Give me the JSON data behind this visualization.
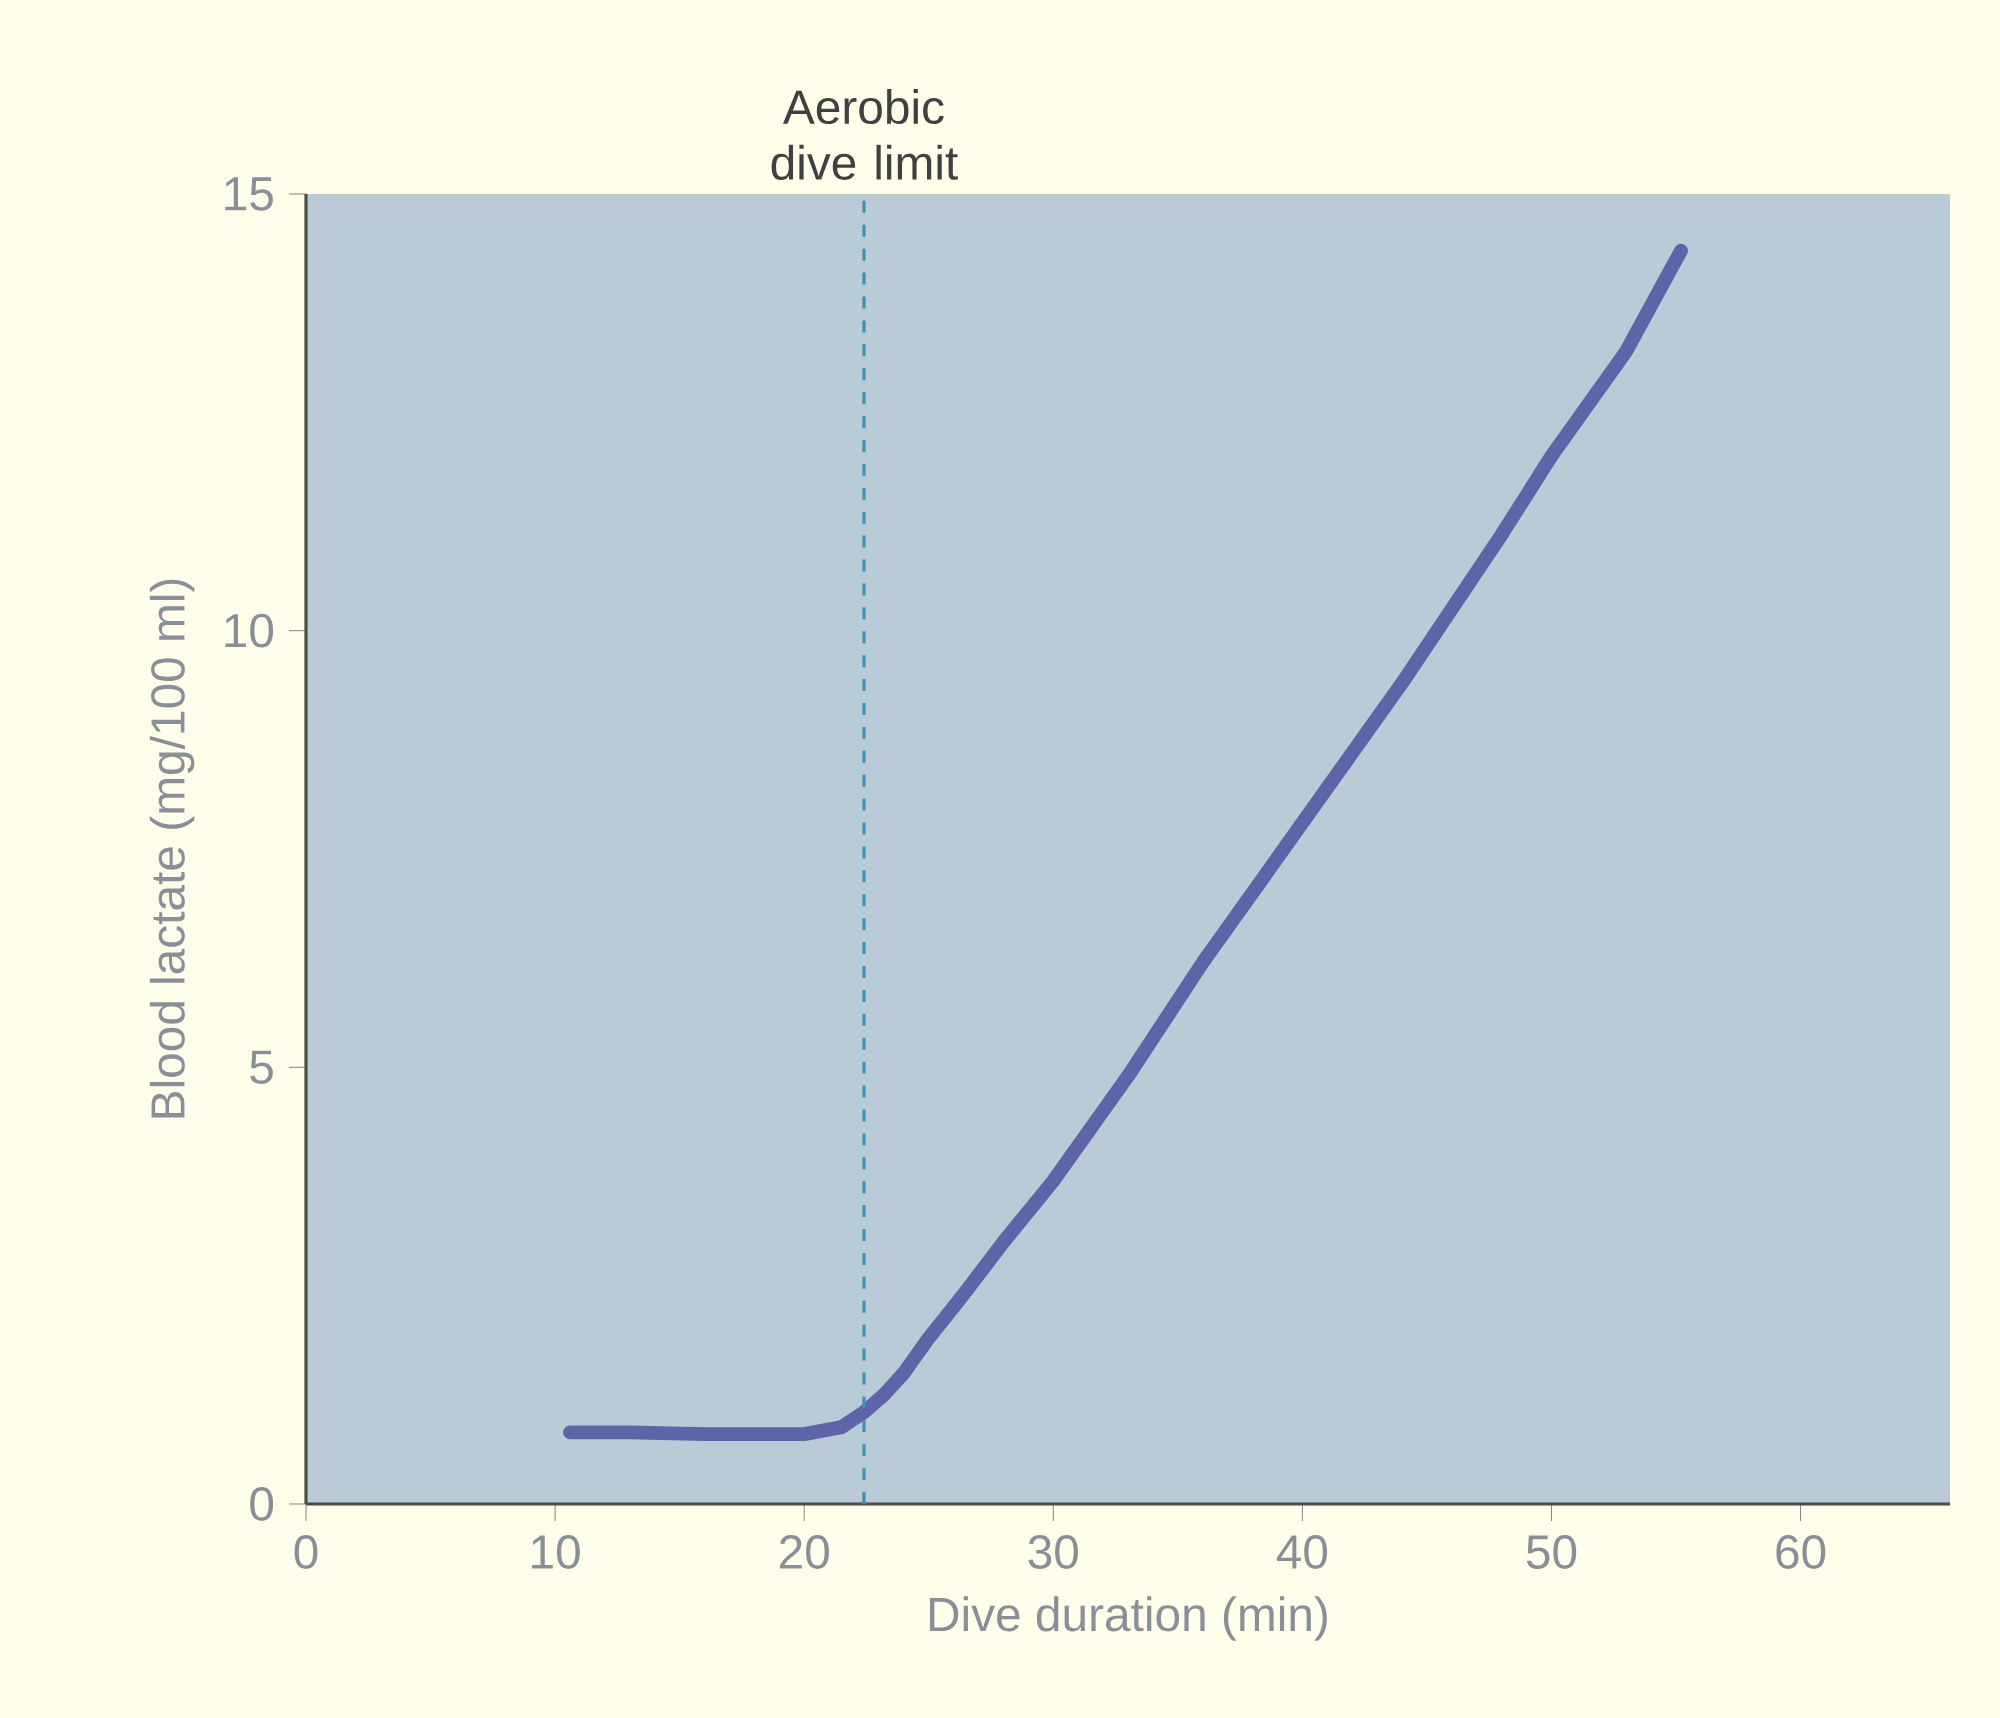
{
  "chart_data": {
    "type": "line",
    "xlabel": "Dive duration (min)",
    "ylabel": "Blood lactate (mg/100 ml)",
    "x": [
      10.6,
      13,
      16,
      20,
      21.5,
      22.4,
      23.2,
      24,
      25,
      26.4,
      28,
      30,
      33,
      36,
      40,
      44,
      48,
      50,
      53,
      55.2
    ],
    "series": [
      {
        "color": "#5f64a8",
        "values": [
          0.82,
          0.82,
          0.8,
          0.8,
          0.88,
          1.05,
          1.25,
          1.5,
          1.9,
          2.4,
          3.0,
          3.7,
          4.9,
          6.2,
          7.8,
          9.4,
          11.1,
          12.0,
          13.2,
          14.35
        ]
      }
    ],
    "xlim": [
      0,
      66
    ],
    "ylim": [
      0,
      15
    ],
    "xticks": [
      0,
      10,
      20,
      30,
      40,
      50,
      60
    ],
    "yticks": [
      0,
      5,
      10,
      15
    ],
    "ref_lines": [
      {
        "axis": "x",
        "value": 22.4,
        "label": "Aerobic dive limit",
        "color": "#3f8fb0",
        "line_style": "dashed"
      }
    ],
    "marker": "none",
    "line_style": "solid"
  }
}
